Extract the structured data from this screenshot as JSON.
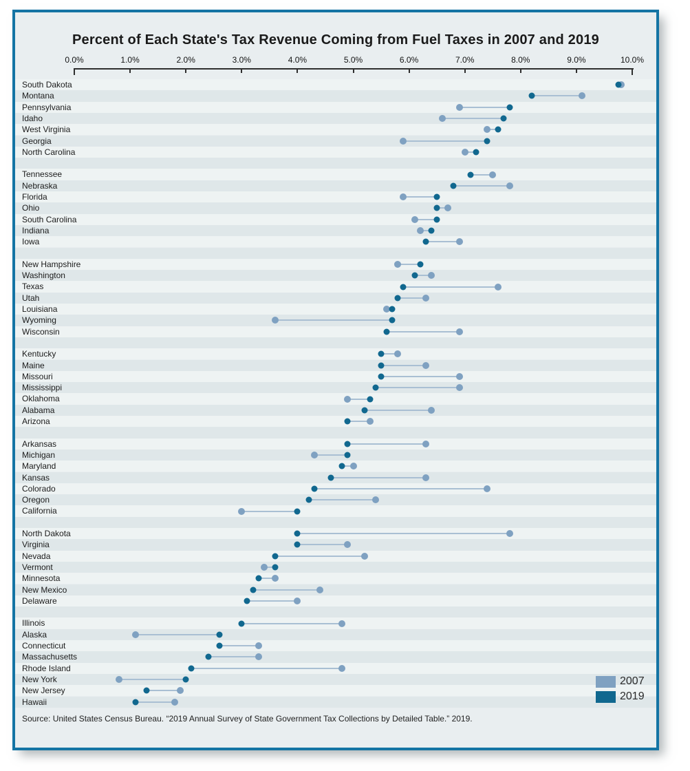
{
  "source": "Source: United States Census Bureau. “2019 Annual Survey of State Government Tax Collections by Detailed Table.” 2019.",
  "legend": {
    "items": [
      {
        "label": "2007"
      },
      {
        "label": "2019"
      }
    ]
  },
  "colors": {
    "series_2007": "#7fa1c1",
    "series_2019": "#11688f",
    "connector": "#a9bfd3",
    "frame_border": "#1474a4",
    "background": "#e9eef0",
    "row_stripe_light": "#eef3f3",
    "row_stripe_dark": "#dfe7e9"
  },
  "chart_data": {
    "type": "scatter",
    "variant": "dumbbell",
    "title": "Percent of Each State's Tax Revenue Coming from Fuel Taxes in 2007 and 2019",
    "series_names": [
      "2007",
      "2019"
    ],
    "x_axis": {
      "min": 0,
      "max": 10,
      "unit": "%",
      "tick_labels": [
        "0.0%",
        "1.0%",
        "2.0%",
        "3.0%",
        "4.0%",
        "5.0%",
        "6.0%",
        "7.0%",
        "8.0%",
        "9.0%",
        "10.0%"
      ]
    },
    "legend_position": "bottom-right",
    "groups": [
      {
        "states": [
          {
            "name": "South Dakota",
            "y2007": 9.8,
            "y2019": 9.75
          },
          {
            "name": "Montana",
            "y2007": 9.1,
            "y2019": 8.2
          },
          {
            "name": "Pennsylvania",
            "y2007": 6.9,
            "y2019": 7.8
          },
          {
            "name": "Idaho",
            "y2007": 6.6,
            "y2019": 7.7
          },
          {
            "name": "West Virginia",
            "y2007": 7.4,
            "y2019": 7.6
          },
          {
            "name": "Georgia",
            "y2007": 5.9,
            "y2019": 7.4
          },
          {
            "name": "North Carolina",
            "y2007": 7.0,
            "y2019": 7.2
          }
        ]
      },
      {
        "states": [
          {
            "name": "Tennessee",
            "y2007": 7.5,
            "y2019": 7.1
          },
          {
            "name": "Nebraska",
            "y2007": 7.8,
            "y2019": 6.8
          },
          {
            "name": "Florida",
            "y2007": 5.9,
            "y2019": 6.5
          },
          {
            "name": "Ohio",
            "y2007": 6.7,
            "y2019": 6.5
          },
          {
            "name": "South Carolina",
            "y2007": 6.1,
            "y2019": 6.5
          },
          {
            "name": "Indiana",
            "y2007": 6.2,
            "y2019": 6.4
          },
          {
            "name": "Iowa",
            "y2007": 6.9,
            "y2019": 6.3
          }
        ]
      },
      {
        "states": [
          {
            "name": "New Hampshire",
            "y2007": 5.8,
            "y2019": 6.2
          },
          {
            "name": "Washington",
            "y2007": 6.4,
            "y2019": 6.1
          },
          {
            "name": "Texas",
            "y2007": 7.6,
            "y2019": 5.9
          },
          {
            "name": "Utah",
            "y2007": 6.3,
            "y2019": 5.8
          },
          {
            "name": "Louisiana",
            "y2007": 5.6,
            "y2019": 5.7
          },
          {
            "name": "Wyoming",
            "y2007": 3.6,
            "y2019": 5.7
          },
          {
            "name": "Wisconsin",
            "y2007": 6.9,
            "y2019": 5.6
          }
        ]
      },
      {
        "states": [
          {
            "name": "Kentucky",
            "y2007": 5.8,
            "y2019": 5.5
          },
          {
            "name": "Maine",
            "y2007": 6.3,
            "y2019": 5.5
          },
          {
            "name": "Missouri",
            "y2007": 6.9,
            "y2019": 5.5
          },
          {
            "name": "Mississippi",
            "y2007": 6.9,
            "y2019": 5.4
          },
          {
            "name": "Oklahoma",
            "y2007": 4.9,
            "y2019": 5.3
          },
          {
            "name": "Alabama",
            "y2007": 6.4,
            "y2019": 5.2
          },
          {
            "name": "Arizona",
            "y2007": 5.3,
            "y2019": 4.9
          }
        ]
      },
      {
        "states": [
          {
            "name": "Arkansas",
            "y2007": 6.3,
            "y2019": 4.9
          },
          {
            "name": "Michigan",
            "y2007": 4.3,
            "y2019": 4.9
          },
          {
            "name": "Maryland",
            "y2007": 5.0,
            "y2019": 4.8
          },
          {
            "name": "Kansas",
            "y2007": 6.3,
            "y2019": 4.6
          },
          {
            "name": "Colorado",
            "y2007": 7.4,
            "y2019": 4.3
          },
          {
            "name": "Oregon",
            "y2007": 5.4,
            "y2019": 4.2
          },
          {
            "name": "California",
            "y2007": 3.0,
            "y2019": 4.0
          }
        ]
      },
      {
        "states": [
          {
            "name": "North Dakota",
            "y2007": 7.8,
            "y2019": 4.0
          },
          {
            "name": "Virginia",
            "y2007": 4.9,
            "y2019": 4.0
          },
          {
            "name": "Nevada",
            "y2007": 5.2,
            "y2019": 3.6
          },
          {
            "name": "Vermont",
            "y2007": 3.4,
            "y2019": 3.6
          },
          {
            "name": "Minnesota",
            "y2007": 3.6,
            "y2019": 3.3
          },
          {
            "name": "New Mexico",
            "y2007": 4.4,
            "y2019": 3.2
          },
          {
            "name": "Delaware",
            "y2007": 4.0,
            "y2019": 3.1
          }
        ]
      },
      {
        "states": [
          {
            "name": "Illinois",
            "y2007": 4.8,
            "y2019": 3.0
          },
          {
            "name": "Alaska",
            "y2007": 1.1,
            "y2019": 2.6
          },
          {
            "name": "Connecticut",
            "y2007": 3.3,
            "y2019": 2.6
          },
          {
            "name": "Massachusetts",
            "y2007": 3.3,
            "y2019": 2.4
          },
          {
            "name": "Rhode Island",
            "y2007": 4.8,
            "y2019": 2.1
          },
          {
            "name": "New York",
            "y2007": 0.8,
            "y2019": 2.0
          },
          {
            "name": "New Jersey",
            "y2007": 1.9,
            "y2019": 1.3
          },
          {
            "name": "Hawaii",
            "y2007": 1.8,
            "y2019": 1.1
          }
        ]
      }
    ]
  }
}
